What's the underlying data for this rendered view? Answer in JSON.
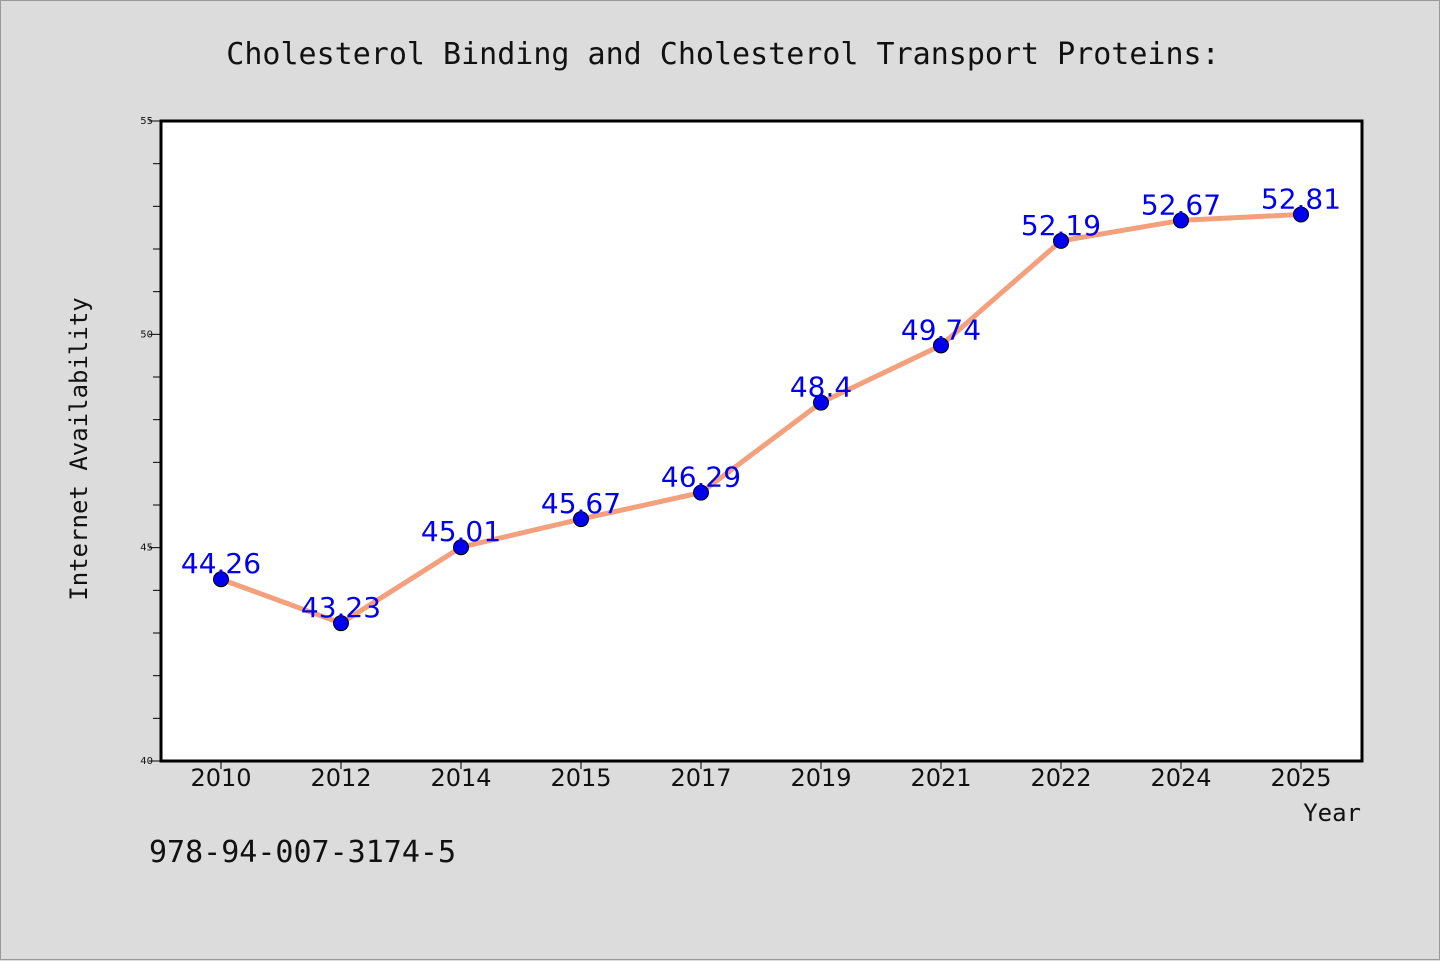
{
  "chart_data": {
    "type": "line",
    "title": "Cholesterol Binding and Cholesterol Transport Proteins:",
    "xlabel": "Year",
    "ylabel": "Internet Availability",
    "categories": [
      "2010",
      "2012",
      "2014",
      "2015",
      "2017",
      "2019",
      "2021",
      "2022",
      "2024",
      "2025"
    ],
    "series": [
      {
        "values": [
          44.26,
          43.23,
          45.01,
          45.67,
          46.29,
          48.4,
          49.74,
          52.19,
          52.67,
          52.81
        ],
        "data_labels": [
          "44.26",
          "43.23",
          "45.01",
          "45.67",
          "46.29",
          "48.4",
          "49.74",
          "52.19",
          "52.67",
          "52.81"
        ],
        "line_color": "#f4a07c",
        "marker_color": "#0000ee"
      }
    ],
    "ylim": [
      40,
      55
    ],
    "y_ticks": [
      "40",
      "45",
      "50",
      "55"
    ],
    "label_color": "#0000ee",
    "grid": false,
    "legend": "none"
  },
  "footer": {
    "isbn": "978-94-007-3174-5"
  }
}
